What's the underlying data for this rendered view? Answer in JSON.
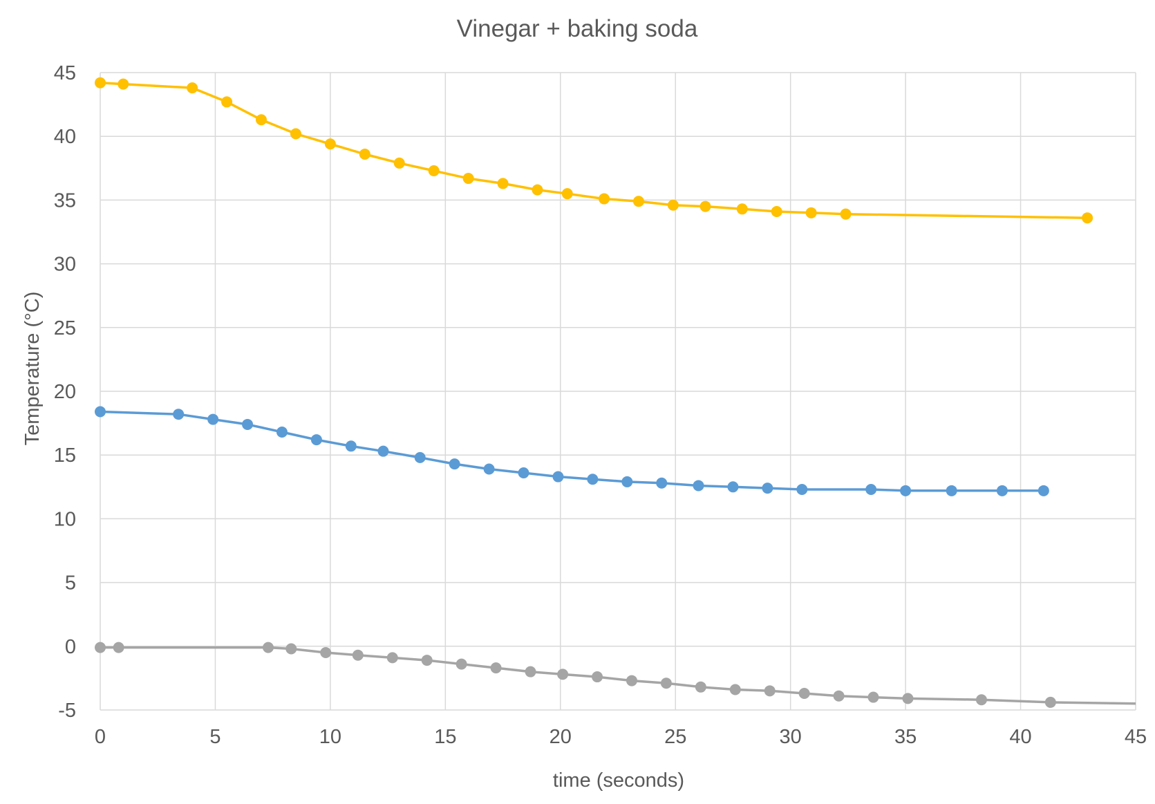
{
  "chart_data": {
    "type": "line",
    "title": "Vinegar + baking soda",
    "xlabel": "time (seconds)",
    "ylabel": "Temperature (°C)",
    "xlim": [
      0,
      45
    ],
    "ylim": [
      -5,
      45
    ],
    "xticks": [
      0,
      5,
      10,
      15,
      20,
      25,
      30,
      35,
      40,
      45
    ],
    "yticks": [
      -5,
      0,
      5,
      10,
      15,
      20,
      25,
      30,
      35,
      40,
      45
    ],
    "grid": true,
    "legend": "none",
    "series": [
      {
        "color": "#ffc000",
        "marker": "circle",
        "points": [
          [
            0,
            44.2
          ],
          [
            1,
            44.1
          ],
          [
            4,
            43.8
          ],
          [
            5.5,
            42.7
          ],
          [
            7,
            41.3
          ],
          [
            8.5,
            40.2
          ],
          [
            10,
            39.4
          ],
          [
            11.5,
            38.6
          ],
          [
            13,
            37.9
          ],
          [
            14.5,
            37.3
          ],
          [
            16,
            36.7
          ],
          [
            17.5,
            36.3
          ],
          [
            19,
            35.8
          ],
          [
            20.3,
            35.5
          ],
          [
            21.9,
            35.1
          ],
          [
            23.4,
            34.9
          ],
          [
            24.9,
            34.6
          ],
          [
            26.3,
            34.5
          ],
          [
            27.9,
            34.3
          ],
          [
            29.4,
            34.1
          ],
          [
            30.9,
            34.0
          ],
          [
            32.4,
            33.9
          ],
          [
            42.9,
            33.6
          ]
        ]
      },
      {
        "color": "#5b9bd5",
        "marker": "circle",
        "points": [
          [
            0,
            18.4
          ],
          [
            3.4,
            18.2
          ],
          [
            4.9,
            17.8
          ],
          [
            6.4,
            17.4
          ],
          [
            7.9,
            16.8
          ],
          [
            9.4,
            16.2
          ],
          [
            10.9,
            15.7
          ],
          [
            12.3,
            15.3
          ],
          [
            13.9,
            14.8
          ],
          [
            15.4,
            14.3
          ],
          [
            16.9,
            13.9
          ],
          [
            18.4,
            13.6
          ],
          [
            19.9,
            13.3
          ],
          [
            21.4,
            13.1
          ],
          [
            22.9,
            12.9
          ],
          [
            24.4,
            12.8
          ],
          [
            26.0,
            12.6
          ],
          [
            27.5,
            12.5
          ],
          [
            29.0,
            12.4
          ],
          [
            30.5,
            12.3
          ],
          [
            33.5,
            12.3
          ],
          [
            35.0,
            12.2
          ],
          [
            37.0,
            12.2
          ],
          [
            39.2,
            12.2
          ],
          [
            41.0,
            12.2
          ]
        ]
      },
      {
        "color": "#a5a5a5",
        "marker": "circle",
        "points": [
          [
            0,
            -0.1
          ],
          [
            0.8,
            -0.1
          ],
          [
            7.3,
            -0.1
          ],
          [
            8.3,
            -0.2
          ],
          [
            9.8,
            -0.5
          ],
          [
            11.2,
            -0.7
          ],
          [
            12.7,
            -0.9
          ],
          [
            14.2,
            -1.1
          ],
          [
            15.7,
            -1.4
          ],
          [
            17.2,
            -1.7
          ],
          [
            18.7,
            -2.0
          ],
          [
            20.1,
            -2.2
          ],
          [
            21.6,
            -2.4
          ],
          [
            23.1,
            -2.7
          ],
          [
            24.6,
            -2.9
          ],
          [
            26.1,
            -3.2
          ],
          [
            27.6,
            -3.4
          ],
          [
            29.1,
            -3.5
          ],
          [
            30.6,
            -3.7
          ],
          [
            32.1,
            -3.9
          ],
          [
            33.6,
            -4.0
          ],
          [
            35.1,
            -4.1
          ],
          [
            38.3,
            -4.2
          ],
          [
            41.3,
            -4.4
          ],
          [
            45,
            -4.5,
            "nomarker"
          ]
        ]
      }
    ]
  }
}
